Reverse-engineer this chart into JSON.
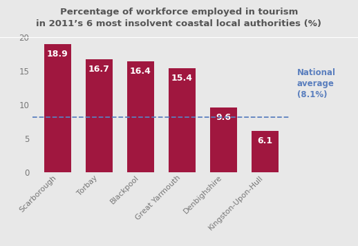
{
  "title_line1": "Percentage of workforce employed in tourism",
  "title_line2": "in 2011’s 6 most insolvent coastal local authorities (%)",
  "categories": [
    "Scarborough",
    "Torbay",
    "Blackpool",
    "Great Yarmouth",
    "Denbighshire",
    "Kingston-Upon-Hull"
  ],
  "values": [
    18.9,
    16.7,
    16.4,
    15.4,
    9.6,
    6.1
  ],
  "bar_color": "#a0173f",
  "background_color": "#e8e8e8",
  "plot_bg_color": "#e8e8e8",
  "ylim": [
    0,
    20
  ],
  "yticks": [
    0,
    5,
    10,
    15,
    20
  ],
  "national_average": 8.1,
  "national_avg_color": "#5b7fbe",
  "national_avg_label_line1": "National",
  "national_avg_label_line2": "average",
  "national_avg_label_line3": "(8.1%)",
  "value_label_color": "#ffffff",
  "value_fontsize": 9,
  "title_fontsize": 9.5,
  "tick_label_color": "#777777",
  "ytick_label_color": "#777777",
  "bar_width": 0.65
}
